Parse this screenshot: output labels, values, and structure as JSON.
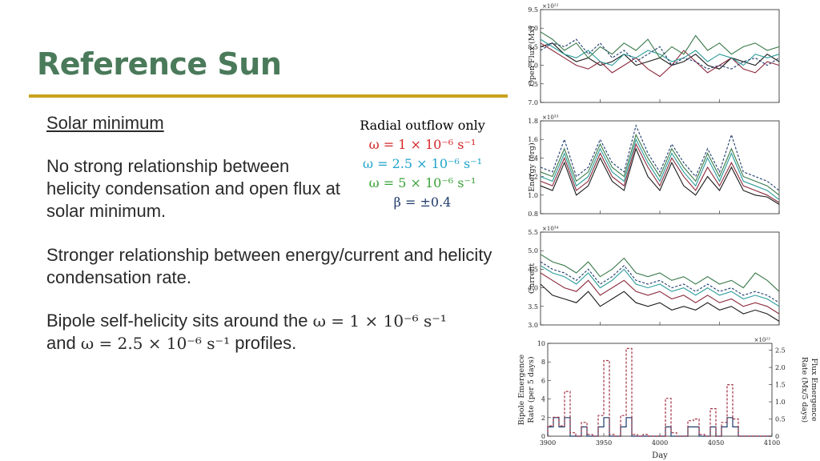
{
  "slide": {
    "title": "Reference Sun",
    "subtitle": "Solar minimum",
    "para1": "No strong relationship between helicity condensation and open flux at solar minimum.",
    "para2": "Stronger relationship between energy/current and helicity condensation rate.",
    "para3_a": "Bipole self-helicity sits around the ",
    "para3_m1": "ω = 1 × 10⁻⁶ s⁻¹",
    "para3_b": "and ",
    "para3_m2": "ω = 2.5 × 10⁻⁶ s⁻¹",
    "para3_c": " profiles."
  },
  "legend": {
    "header": "Radial outflow only",
    "items": [
      {
        "label": "ω = 1 × 10⁻⁶ s⁻¹",
        "color": "#d62728"
      },
      {
        "label": "ω = 2.5 × 10⁻⁶ s⁻¹",
        "color": "#1fa3c8"
      },
      {
        "label": "ω = 5 × 10⁻⁶ s⁻¹",
        "color": "#3aa13a"
      },
      {
        "label": "β = ±0.4",
        "color": "#1f3a6b"
      }
    ]
  },
  "chart_data": [
    {
      "type": "line",
      "ylabel": "Open Flux (Mx)",
      "scale_label": "×10²²",
      "ylim": [
        7.0,
        9.5
      ],
      "yticks": [
        "7.0",
        "7.5",
        "8.0",
        "8.5",
        "9.0",
        "9.5"
      ],
      "xlim": [
        3900,
        4100
      ],
      "x": [
        3900,
        3910,
        3920,
        3930,
        3940,
        3950,
        3960,
        3970,
        3980,
        3990,
        4000,
        4010,
        4020,
        4030,
        4040,
        4050,
        4060,
        4070,
        4080,
        4090,
        4100
      ],
      "series": [
        {
          "name": "Radial outflow only",
          "color": "#1a1a1a",
          "dash": false,
          "values": [
            8.5,
            8.6,
            8.3,
            8.1,
            8.2,
            8.0,
            8.1,
            8.3,
            8.0,
            8.1,
            8.2,
            8.0,
            8.1,
            8.3,
            8.0,
            7.9,
            8.2,
            8.1,
            8.0,
            8.3,
            8.1
          ]
        },
        {
          "name": "ω = 1 × 10⁻⁶ s⁻¹",
          "color": "#8b2a3c",
          "dash": false,
          "values": [
            8.6,
            8.4,
            8.2,
            8.0,
            7.9,
            8.1,
            7.8,
            8.0,
            8.2,
            7.9,
            7.7,
            8.0,
            8.4,
            8.1,
            7.8,
            8.0,
            8.2,
            7.9,
            7.8,
            8.1,
            8.0
          ]
        },
        {
          "name": "ω = 2.5 × 10⁻⁶ s⁻¹",
          "color": "#2a9c9a",
          "dash": false,
          "values": [
            8.7,
            8.5,
            8.3,
            8.2,
            8.4,
            8.1,
            8.0,
            8.3,
            8.2,
            8.4,
            8.3,
            8.1,
            8.2,
            8.4,
            8.1,
            8.3,
            8.2,
            8.0,
            8.3,
            8.2,
            8.3
          ]
        },
        {
          "name": "ω = 5 × 10⁻⁶ s⁻¹",
          "color": "#3a7a4a",
          "dash": false,
          "values": [
            8.9,
            8.7,
            8.4,
            8.6,
            8.2,
            8.5,
            8.3,
            8.6,
            8.4,
            8.7,
            8.2,
            8.5,
            8.3,
            8.8,
            8.4,
            8.6,
            8.3,
            8.5,
            8.6,
            8.4,
            8.5
          ]
        },
        {
          "name": "β = ±0.4",
          "color": "#1f3a6b",
          "dash": true,
          "values": [
            8.4,
            8.6,
            8.5,
            8.7,
            8.3,
            8.6,
            8.2,
            8.4,
            8.1,
            8.3,
            8.5,
            8.0,
            8.2,
            8.1,
            7.9,
            8.0,
            7.9,
            8.1,
            8.2,
            8.0,
            8.2
          ]
        }
      ]
    },
    {
      "type": "line",
      "ylabel": "Energy (erg)",
      "scale_label": "×10³³",
      "ylim": [
        0.8,
        1.8
      ],
      "yticks": [
        "0.8",
        "1.0",
        "1.2",
        "1.4",
        "1.6",
        "1.8"
      ],
      "xlim": [
        3900,
        4100
      ],
      "x": [
        3900,
        3910,
        3920,
        3930,
        3940,
        3950,
        3960,
        3970,
        3980,
        3990,
        4000,
        4010,
        4020,
        4030,
        4040,
        4050,
        4060,
        4070,
        4080,
        4090,
        4100
      ],
      "series": [
        {
          "name": "Radial outflow only",
          "color": "#1a1a1a",
          "dash": false,
          "values": [
            1.1,
            1.05,
            1.35,
            1.0,
            1.1,
            1.4,
            1.15,
            1.05,
            1.5,
            1.2,
            1.05,
            1.35,
            1.1,
            1.0,
            1.2,
            1.05,
            1.3,
            1.05,
            1.0,
            0.98,
            0.9
          ]
        },
        {
          "name": "ω = 1 × 10⁻⁶ s⁻¹",
          "color": "#8b2a3c",
          "dash": false,
          "values": [
            1.15,
            1.1,
            1.4,
            1.05,
            1.15,
            1.45,
            1.2,
            1.1,
            1.55,
            1.3,
            1.1,
            1.4,
            1.2,
            1.05,
            1.3,
            1.1,
            1.35,
            1.1,
            1.05,
            1.0,
            0.92
          ]
        },
        {
          "name": "ω = 2.5 × 10⁻⁶ s⁻¹",
          "color": "#2a9c9a",
          "dash": false,
          "values": [
            1.2,
            1.15,
            1.45,
            1.1,
            1.2,
            1.5,
            1.25,
            1.15,
            1.6,
            1.35,
            1.15,
            1.45,
            1.25,
            1.1,
            1.4,
            1.15,
            1.45,
            1.15,
            1.1,
            1.05,
            0.95
          ]
        },
        {
          "name": "ω = 5 × 10⁻⁶ s⁻¹",
          "color": "#3a7a4a",
          "dash": false,
          "values": [
            1.25,
            1.2,
            1.5,
            1.15,
            1.25,
            1.55,
            1.3,
            1.2,
            1.65,
            1.4,
            1.2,
            1.5,
            1.3,
            1.15,
            1.45,
            1.2,
            1.5,
            1.2,
            1.15,
            1.1,
            1.0
          ]
        },
        {
          "name": "β = ±0.4",
          "color": "#1f3a6b",
          "dash": true,
          "values": [
            1.3,
            1.25,
            1.6,
            1.2,
            1.3,
            1.6,
            1.35,
            1.25,
            1.75,
            1.45,
            1.25,
            1.55,
            1.35,
            1.2,
            1.5,
            1.25,
            1.65,
            1.25,
            1.2,
            1.15,
            1.05
          ]
        }
      ]
    },
    {
      "type": "line",
      "ylabel": "Current",
      "scale_label": "×10³⁴",
      "ylim": [
        3.0,
        5.5
      ],
      "yticks": [
        "3.0",
        "3.5",
        "4.0",
        "4.5",
        "5.0",
        "5.5"
      ],
      "xlim": [
        3900,
        4100
      ],
      "x": [
        3900,
        3910,
        3920,
        3930,
        3940,
        3950,
        3960,
        3970,
        3980,
        3990,
        4000,
        4010,
        4020,
        4030,
        4040,
        4050,
        4060,
        4070,
        4080,
        4090,
        4100
      ],
      "series": [
        {
          "name": "Radial outflow only",
          "color": "#1a1a1a",
          "dash": false,
          "values": [
            4.1,
            3.8,
            3.7,
            3.6,
            3.9,
            3.5,
            3.7,
            3.9,
            3.6,
            3.5,
            3.6,
            3.4,
            3.5,
            3.4,
            3.6,
            3.4,
            3.5,
            3.3,
            3.4,
            3.3,
            3.1
          ]
        },
        {
          "name": "ω = 1 × 10⁻⁶ s⁻¹",
          "color": "#8b2a3c",
          "dash": false,
          "values": [
            4.4,
            4.2,
            4.0,
            3.9,
            4.2,
            3.8,
            4.0,
            4.2,
            3.9,
            3.8,
            3.9,
            3.7,
            3.8,
            3.6,
            3.8,
            3.6,
            3.7,
            3.5,
            3.6,
            3.5,
            3.3
          ]
        },
        {
          "name": "ω = 2.5 × 10⁻⁶ s⁻¹",
          "color": "#2a9c9a",
          "dash": false,
          "values": [
            4.6,
            4.4,
            4.3,
            4.1,
            4.4,
            4.0,
            4.2,
            4.5,
            4.1,
            4.0,
            4.1,
            3.9,
            4.0,
            3.8,
            4.0,
            3.8,
            3.9,
            3.7,
            3.8,
            3.7,
            3.5
          ]
        },
        {
          "name": "ω = 5 × 10⁻⁶ s⁻¹",
          "color": "#3a7a4a",
          "dash": false,
          "values": [
            4.9,
            4.7,
            4.6,
            4.4,
            4.7,
            4.3,
            4.5,
            4.8,
            4.4,
            4.3,
            4.4,
            4.2,
            4.3,
            4.1,
            4.3,
            4.1,
            4.2,
            4.0,
            4.4,
            4.2,
            3.9
          ]
        },
        {
          "name": "β = ±0.4",
          "color": "#1f3a6b",
          "dash": true,
          "values": [
            4.7,
            4.5,
            4.4,
            4.2,
            4.5,
            4.1,
            4.3,
            4.6,
            4.2,
            4.1,
            4.2,
            4.0,
            4.1,
            3.9,
            4.1,
            3.9,
            4.0,
            3.8,
            3.9,
            3.8,
            3.6
          ]
        }
      ]
    },
    {
      "type": "bar",
      "ylabel": "Bipole Emergence Rate (per 5 days)",
      "ylabel2": "Flux Emergence Rate (Mx/5 days)",
      "scale_label": "×10²²",
      "xlabel": "Day",
      "ylim": [
        0,
        10
      ],
      "ylim2": [
        0,
        2.7
      ],
      "yticks": [
        "0",
        "2",
        "4",
        "6",
        "8",
        "10"
      ],
      "yticks2": [
        "0",
        "0.5",
        "1.0",
        "1.5",
        "2.0",
        "2.5"
      ],
      "xlim": [
        3900,
        4100
      ],
      "xticks": [
        "3900",
        "3950",
        "4000",
        "4050",
        "4100"
      ],
      "bin_starts": [
        3900,
        3905,
        3910,
        3915,
        3920,
        3925,
        3930,
        3935,
        3940,
        3945,
        3950,
        3955,
        3960,
        3965,
        3970,
        3975,
        3980,
        3985,
        3990,
        3995,
        4000,
        4005,
        4010,
        4015,
        4020,
        4025,
        4030,
        4035,
        4040,
        4045,
        4050,
        4055,
        4060,
        4065,
        4070,
        4075,
        4080,
        4085,
        4090,
        4095
      ],
      "series": [
        {
          "name": "Bipole emergence",
          "color": "#1f3a6b",
          "dash": false,
          "values": [
            1,
            2,
            1,
            2,
            0,
            0,
            1,
            0,
            0,
            1,
            2,
            0,
            0,
            1,
            2,
            0,
            0,
            0,
            0,
            0,
            0,
            1,
            0,
            0,
            0,
            1,
            1,
            0,
            0,
            1,
            0,
            1,
            2,
            1,
            0,
            0,
            0,
            0,
            0,
            0
          ]
        },
        {
          "name": "Flux emergence",
          "color": "#a03040",
          "dash": true,
          "values": [
            0.3,
            0.55,
            0.3,
            1.3,
            0.1,
            0.0,
            0.4,
            0.05,
            0.0,
            0.6,
            2.2,
            0.05,
            0.0,
            0.6,
            2.55,
            0.05,
            0.0,
            0.05,
            0.0,
            0.0,
            0.0,
            1.1,
            0.1,
            0.0,
            0.0,
            0.45,
            0.5,
            0.05,
            0.0,
            0.8,
            0.0,
            0.4,
            1.5,
            0.5,
            0.0,
            0.0,
            0.0,
            0.0,
            0.0,
            0.0
          ]
        }
      ]
    }
  ]
}
